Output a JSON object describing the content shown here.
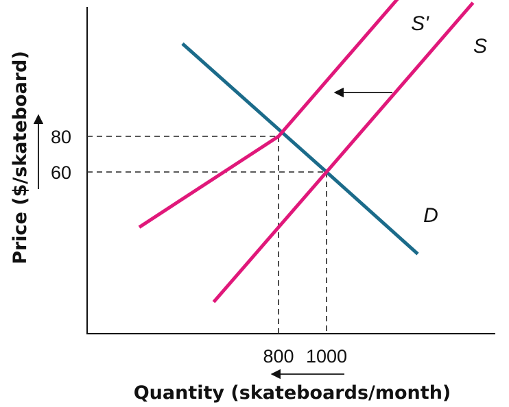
{
  "chart_data": {
    "type": "line",
    "xlabel": "Quantity (skateboards/month)",
    "ylabel": "Price ($/skateboard)",
    "grid": false,
    "x_ticks": [
      {
        "value": 800,
        "label": "800"
      },
      {
        "value": 1000,
        "label": "1000"
      }
    ],
    "y_ticks": [
      {
        "value": 80,
        "label": "80"
      },
      {
        "value": 60,
        "label": "60"
      }
    ],
    "series": [
      {
        "name": "D",
        "color": "#1b6b8a",
        "points": [
          [
            400,
            132
          ],
          [
            1000,
            60
          ],
          [
            1380,
            14
          ]
        ]
      },
      {
        "name": "S",
        "color": "#e0187a",
        "points": [
          [
            530,
            -13
          ],
          [
            1000,
            60
          ],
          [
            1610,
            155
          ]
        ]
      },
      {
        "name": "S'",
        "color": "#e0187a",
        "points": [
          [
            220,
            29
          ],
          [
            800,
            80
          ],
          [
            1340,
            164
          ]
        ]
      }
    ],
    "equilibria": [
      {
        "x": 800,
        "y": 80
      },
      {
        "x": 1000,
        "y": 60
      }
    ],
    "shift_arrow": {
      "direction": "left"
    },
    "axis_arrows": {
      "x": "left",
      "y": "up"
    }
  }
}
